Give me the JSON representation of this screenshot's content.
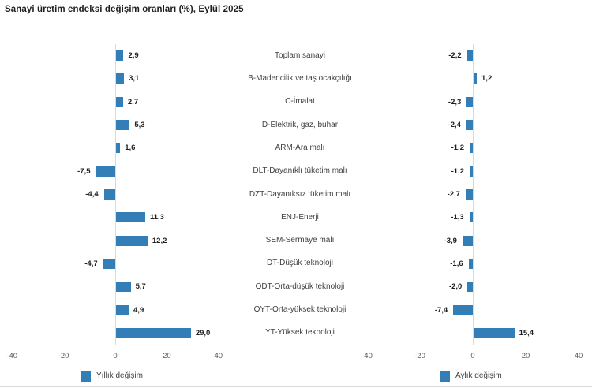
{
  "title": "Sanayi üretim endeksi değişim oranları (%), Eylül 2025",
  "colors": {
    "bar": "#347eb8",
    "axis_line": "#d9d9d9",
    "tick_text": "#595959",
    "category_text": "#404040",
    "value_text": "#1f1f1f"
  },
  "chart_data": {
    "type": "bar",
    "orientation": "horizontal",
    "decimal_separator": ",",
    "title": "Sanayi üretim endeksi değişim oranları (%), Eylül 2025",
    "categories": [
      "Toplam sanayi",
      "B-Madencilik ve taş ocakçılığı",
      "C-İmalat",
      "D-Elektrik, gaz, buhar",
      "ARM-Ara malı",
      "DLT-Dayanıklı tüketim malı",
      "DZT-Dayanıksız tüketim malı",
      "ENJ-Enerji",
      "SEM-Sermaye malı",
      "DT-Düşük teknoloji",
      "ODT-Orta-düşük teknoloji",
      "OYT-Orta-yüksek teknoloji",
      "YT-Yüksek teknoloji"
    ],
    "series": [
      {
        "name": "Yıllık değişim",
        "values": [
          2.9,
          3.1,
          2.7,
          5.3,
          1.6,
          -7.5,
          -4.4,
          11.3,
          12.2,
          -4.7,
          5.7,
          4.9,
          29.0
        ]
      },
      {
        "name": "Aylık değişim",
        "values": [
          -2.2,
          1.2,
          -2.3,
          -2.4,
          -1.2,
          -1.2,
          -2.7,
          -1.3,
          -3.9,
          -1.6,
          -2.0,
          -7.4,
          15.4
        ]
      }
    ],
    "xlim": [
      -40,
      40
    ],
    "xticks": [
      -40,
      -20,
      0,
      20,
      40
    ],
    "grid": false,
    "legend_position": "bottom",
    "value_labels_visible": true
  }
}
